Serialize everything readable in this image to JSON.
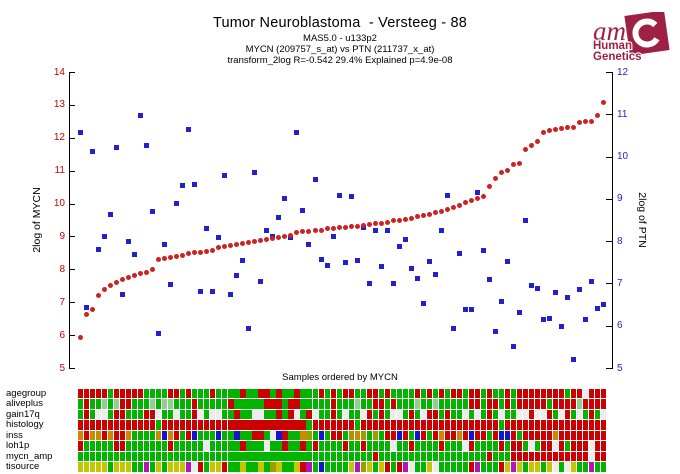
{
  "header": {
    "title": "Tumor Neuroblastoma  - Versteeg - 88",
    "subtitle_platform": "MAS5.0 - u133p2",
    "subtitle_probes": "MYCN (209757_s_at) vs PTN (211737_x_at)",
    "subtitle_stats": "transform_2log R=-0.542 29.4% Explained p=4.9e-08"
  },
  "logo": {
    "am_text": "am",
    "line1": "Human",
    "line2": "Genetics",
    "color": "#9e2144"
  },
  "chart_data": {
    "type": "scatter",
    "title": "Tumor Neuroblastoma  - Versteeg - 88",
    "x_label": "Samples ordered by MYCN",
    "n_samples": 88,
    "grid": false,
    "left_axis": {
      "label": "2log of MYCN",
      "color": "#cc0000",
      "range": [
        5,
        14
      ],
      "ticks": [
        5,
        6,
        7,
        8,
        9,
        10,
        11,
        12,
        13,
        14
      ]
    },
    "right_axis": {
      "label": "2log of PTN",
      "color": "#2222cc",
      "range": [
        5,
        12
      ],
      "ticks": [
        5,
        6,
        7,
        8,
        9,
        10,
        11,
        12
      ]
    },
    "series": [
      {
        "name": "MYCN (209757_s_at)",
        "axis": "left",
        "marker": "circle",
        "color": "#cc2222",
        "values": [
          5.92,
          6.62,
          6.78,
          7.21,
          7.39,
          7.51,
          7.61,
          7.69,
          7.75,
          7.82,
          7.86,
          7.91,
          8.0,
          8.29,
          8.33,
          8.36,
          8.4,
          8.43,
          8.47,
          8.5,
          8.52,
          8.55,
          8.57,
          8.65,
          8.69,
          8.73,
          8.76,
          8.78,
          8.81,
          8.84,
          8.87,
          8.92,
          8.94,
          8.96,
          9.0,
          9.02,
          9.11,
          9.14,
          9.15,
          9.17,
          9.18,
          9.23,
          9.25,
          9.26,
          9.28,
          9.29,
          9.31,
          9.33,
          9.37,
          9.39,
          9.4,
          9.42,
          9.47,
          9.5,
          9.53,
          9.56,
          9.6,
          9.64,
          9.68,
          9.73,
          9.77,
          9.82,
          9.87,
          9.95,
          10.02,
          10.09,
          10.14,
          10.2,
          10.52,
          10.76,
          10.93,
          11.0,
          11.18,
          11.21,
          11.64,
          11.77,
          11.89,
          12.17,
          12.23,
          12.26,
          12.29,
          12.32,
          12.31,
          12.47,
          12.49,
          12.51,
          12.67,
          13.06
        ]
      },
      {
        "name": "PTN (211737_x_at)",
        "axis": "right",
        "marker": "square",
        "color": "#2222cc",
        "values": [
          10.58,
          6.44,
          10.13,
          7.81,
          8.11,
          8.64,
          10.22,
          6.75,
          7.99,
          7.68,
          10.96,
          10.26,
          8.7,
          5.81,
          7.91,
          6.97,
          8.9,
          9.32,
          10.64,
          9.35,
          6.82,
          8.3,
          6.81,
          8.08,
          9.56,
          6.74,
          7.18,
          7.54,
          5.94,
          9.63,
          7.04,
          8.24,
          8.1,
          8.56,
          9.02,
          8.08,
          10.57,
          8.72,
          7.93,
          9.46,
          7.57,
          7.43,
          8.1,
          9.07,
          7.5,
          9.05,
          7.54,
          8.33,
          7.0,
          8.25,
          7.41,
          8.26,
          7.0,
          7.87,
          8.04,
          7.35,
          7.12,
          6.52,
          7.51,
          7.21,
          8.25,
          9.08,
          5.93,
          7.7,
          6.38,
          6.39,
          9.14,
          7.79,
          7.1,
          5.86,
          6.57,
          7.52,
          5.5,
          6.32,
          8.48,
          6.95,
          6.87,
          6.14,
          6.17,
          6.79,
          5.98,
          6.67,
          5.21,
          6.85,
          6.15,
          7.04,
          6.41,
          6.5
        ]
      }
    ]
  },
  "tracks": {
    "color_map": {
      "R": "#cc0000",
      "G": "#00b400",
      "P": "#8fcf8f",
      "W": "#ececec",
      "O": "#cc8800",
      "L": "#9d9d00",
      "Y": "#c6c600",
      "B": "#1414cc",
      "M": "#bb11bb"
    },
    "rows": [
      {
        "label": "agegroup",
        "cells": "RRRRRGRRRRRGGGGRRGRGGGRGGGGRGGRRGRGGRGGGRGRGRRGGRRGRGGGGRGRGRGRRGRRGRGGRGRRRRRRRRGRRWRRR"
      },
      {
        "label": "aliveplus",
        "cells": "GRGGPGPRRGGGPGPPGGGRGGGGGRGGGGGRRRGRRGGGGGRGGGPGGRRGRGGGPGGPGGGGGRRGRRGRGRRRRRGRRRRPRRRR"
      },
      {
        "label": "gain17q",
        "cells": "GRGWWGRRGGGRRWGGWGGRWGWWGGRGGWWGGRGRWGRWGGRGWGGWRGRGWWGRGWRRGRGGWGWGRGWGGWWRWWRGWRGWGRGW"
      },
      {
        "label": "histology",
        "cells": "RRRRRRRRRRRRRGRRRRRRRRRRRRRRRRRRRRRRRRGRRRRRRRGRRRRRRRRRRRRRRRRRRRRRRRGRRRRRRRRRRRRRRRRR"
      },
      {
        "label": "inss",
        "cells": "OROORORROGGGGOBORGRBGGGBGGBGGRRGWBRGGOLGBGRRGLOLGLGRRBRGBRGRORRORBRRGRBBRGRRRRRORRRRRRRR"
      },
      {
        "label": "loh1p",
        "cells": "RGGGGGRRGGGGGGGRGGGGGWGGGGGRGGGWGGRGGRGRGGGGRGGRGGGGWGGRGGGGRGGGWRGGGGRGRRGWGRRWRGRRRWRR"
      },
      {
        "label": "mycn_amp",
        "cells": "GGGGGGGGGGGGGGGGGGGGGGGGGGGGGGGGGGGGGGGGGGGGGGGGGRGGGGGGGGGGGGGGGGGGRGGGRRRRRRRRRRRRRWRR"
      },
      {
        "label": "tisource",
        "cells": "YYYYYGYYYGGMGYGYYYMWRGYYRGGYGGYGLYGGYRMGBGGGGYMLYGYRGRMWGGYWGGGGGRMGGGRYMYGYYGYWGWYGGMGG"
      }
    ]
  }
}
